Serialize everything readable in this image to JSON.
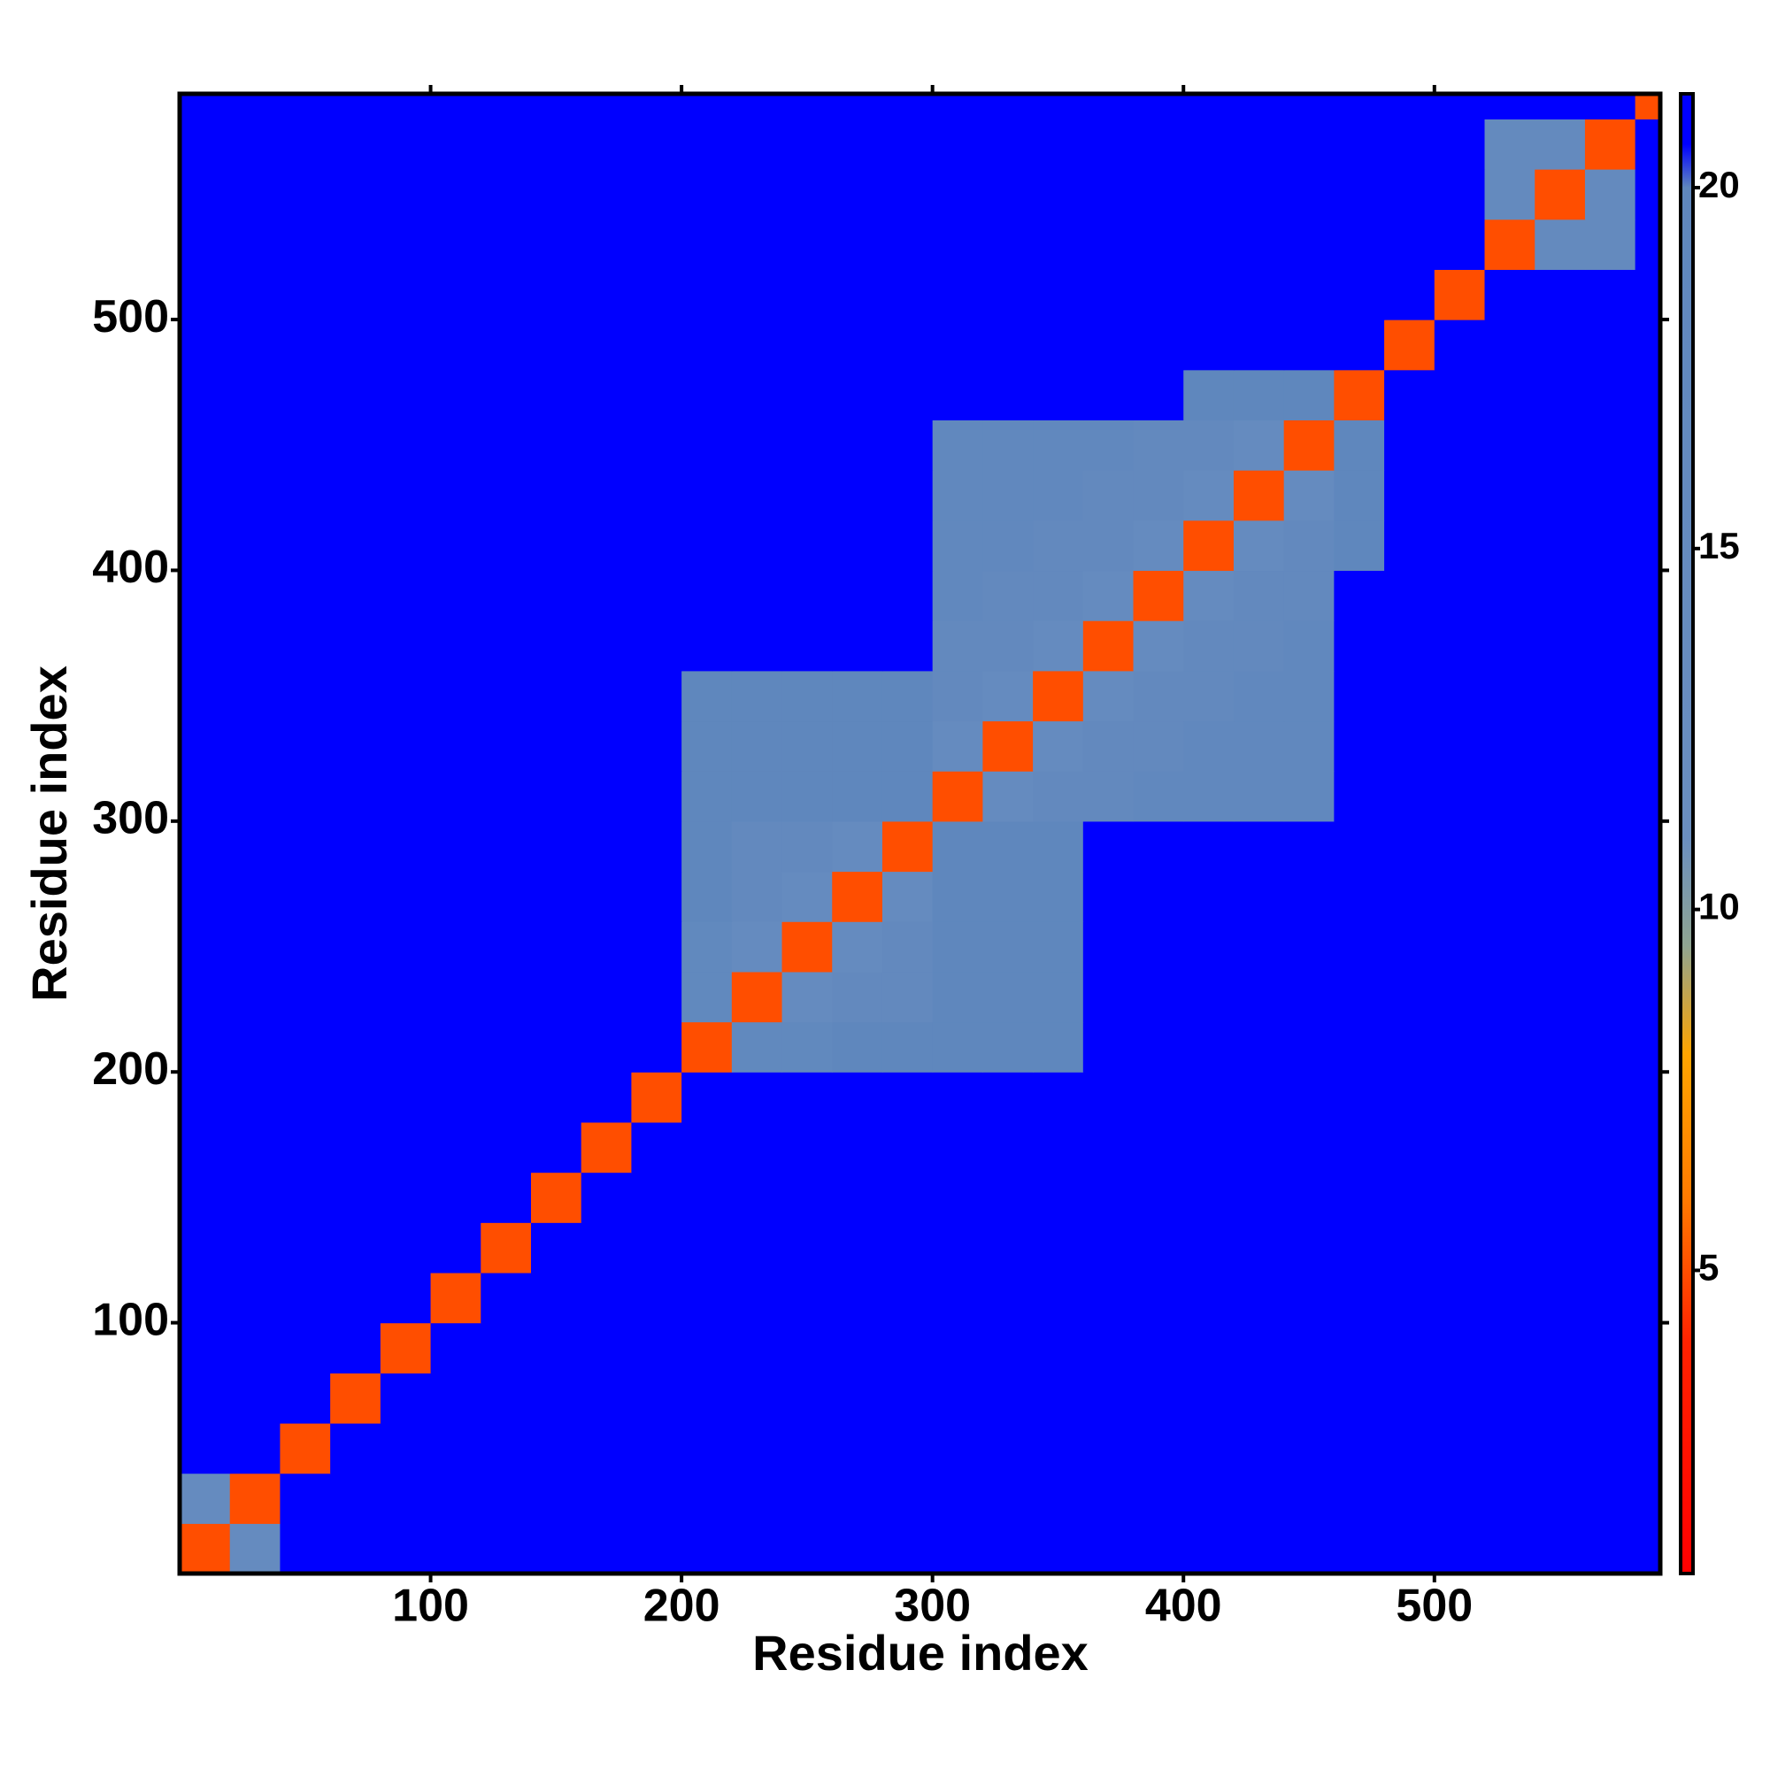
{
  "chart_data": {
    "type": "heatmap",
    "x_label": "Residue index",
    "y_label": "Residue index",
    "x": [
      0,
      20,
      40,
      60,
      80,
      100,
      120,
      140,
      160,
      180,
      200,
      220,
      240,
      260,
      280,
      300,
      320,
      340,
      360,
      380,
      400,
      420,
      440,
      460,
      480,
      500,
      520,
      540,
      560,
      580,
      590
    ],
    "y": [
      0,
      20,
      40,
      60,
      80,
      100,
      120,
      140,
      160,
      180,
      200,
      220,
      240,
      260,
      280,
      300,
      320,
      340,
      360,
      380,
      400,
      420,
      440,
      460,
      480,
      500,
      520,
      540,
      560,
      580,
      590
    ],
    "z": [
      [
        5,
        15,
        21,
        21,
        21,
        21,
        21,
        21,
        21,
        21,
        21,
        21,
        21,
        21,
        21,
        21,
        21,
        21,
        21,
        21,
        21,
        21,
        21,
        21,
        21,
        21,
        21,
        21,
        21,
        21
      ],
      [
        15,
        5,
        21,
        21,
        21,
        21,
        21,
        21,
        21,
        21,
        21,
        21,
        21,
        21,
        21,
        21,
        21,
        21,
        21,
        21,
        21,
        21,
        21,
        21,
        21,
        21,
        21,
        21,
        21,
        21
      ],
      [
        21,
        21,
        5,
        21,
        21,
        21,
        21,
        21,
        21,
        21,
        21,
        21,
        21,
        21,
        21,
        21,
        21,
        21,
        21,
        21,
        21,
        21,
        21,
        21,
        21,
        21,
        21,
        21,
        21,
        21
      ],
      [
        21,
        21,
        21,
        5,
        21,
        21,
        21,
        21,
        21,
        21,
        21,
        21,
        21,
        21,
        21,
        21,
        21,
        21,
        21,
        21,
        21,
        21,
        21,
        21,
        21,
        21,
        21,
        21,
        21,
        21
      ],
      [
        21,
        21,
        21,
        21,
        5,
        21,
        21,
        21,
        21,
        21,
        21,
        21,
        21,
        21,
        21,
        21,
        21,
        21,
        21,
        21,
        21,
        21,
        21,
        21,
        21,
        21,
        21,
        21,
        21,
        21
      ],
      [
        21,
        21,
        21,
        21,
        21,
        5,
        21,
        21,
        21,
        21,
        21,
        21,
        21,
        21,
        21,
        21,
        21,
        21,
        21,
        21,
        21,
        21,
        21,
        21,
        21,
        21,
        21,
        21,
        21,
        21
      ],
      [
        21,
        21,
        21,
        21,
        21,
        21,
        5,
        21,
        21,
        21,
        21,
        21,
        21,
        21,
        21,
        21,
        21,
        21,
        21,
        21,
        21,
        21,
        21,
        21,
        21,
        21,
        21,
        21,
        21,
        21
      ],
      [
        21,
        21,
        21,
        21,
        21,
        21,
        21,
        5,
        21,
        21,
        21,
        21,
        21,
        21,
        21,
        21,
        21,
        21,
        21,
        21,
        21,
        21,
        21,
        21,
        21,
        21,
        21,
        21,
        21,
        21
      ],
      [
        21,
        21,
        21,
        21,
        21,
        21,
        21,
        21,
        5,
        21,
        21,
        21,
        21,
        21,
        21,
        21,
        21,
        21,
        21,
        21,
        21,
        21,
        21,
        21,
        21,
        21,
        21,
        21,
        21,
        21
      ],
      [
        21,
        21,
        21,
        21,
        21,
        21,
        21,
        21,
        21,
        5,
        21,
        21,
        21,
        21,
        21,
        21,
        21,
        21,
        21,
        21,
        21,
        21,
        21,
        21,
        21,
        21,
        21,
        21,
        21,
        21
      ],
      [
        21,
        21,
        21,
        21,
        21,
        21,
        21,
        21,
        21,
        21,
        5,
        18,
        18,
        20,
        20,
        20,
        20,
        20,
        21,
        21,
        21,
        21,
        21,
        21,
        21,
        21,
        21,
        21,
        21,
        21
      ],
      [
        21,
        21,
        21,
        21,
        21,
        21,
        21,
        21,
        21,
        21,
        18,
        5,
        15,
        17,
        17,
        20,
        20,
        20,
        21,
        21,
        21,
        21,
        21,
        21,
        21,
        21,
        21,
        21,
        21,
        21
      ],
      [
        21,
        21,
        21,
        21,
        21,
        21,
        21,
        21,
        21,
        21,
        18,
        15,
        5,
        15,
        17,
        20,
        20,
        20,
        21,
        21,
        21,
        21,
        21,
        21,
        21,
        21,
        21,
        21,
        21,
        21
      ],
      [
        21,
        21,
        21,
        21,
        21,
        21,
        21,
        21,
        21,
        21,
        20,
        17,
        15,
        5,
        15,
        20,
        20,
        20,
        21,
        21,
        21,
        21,
        21,
        21,
        21,
        21,
        21,
        21,
        21,
        21
      ],
      [
        21,
        21,
        21,
        21,
        21,
        21,
        21,
        21,
        21,
        21,
        20,
        17,
        17,
        15,
        5,
        20,
        20,
        20,
        21,
        21,
        21,
        21,
        21,
        21,
        21,
        21,
        21,
        21,
        21,
        21
      ],
      [
        21,
        21,
        21,
        21,
        21,
        21,
        21,
        21,
        21,
        21,
        20,
        20,
        20,
        20,
        20,
        5,
        15,
        17,
        17,
        18.5,
        18.5,
        18.5,
        18.5,
        21,
        21,
        21,
        21,
        21,
        21,
        21
      ],
      [
        21,
        21,
        21,
        21,
        21,
        21,
        21,
        21,
        21,
        21,
        20,
        20,
        20,
        20,
        20,
        15,
        5,
        15,
        17,
        17,
        18.5,
        18.5,
        18.5,
        21,
        21,
        21,
        21,
        21,
        21,
        21
      ],
      [
        21,
        21,
        21,
        21,
        21,
        21,
        21,
        21,
        21,
        21,
        20,
        20,
        20,
        20,
        20,
        17,
        15,
        5,
        15,
        17,
        17,
        18.5,
        18.5,
        21,
        21,
        21,
        21,
        21,
        21,
        21
      ],
      [
        21,
        21,
        21,
        21,
        21,
        21,
        21,
        21,
        21,
        21,
        21,
        21,
        21,
        21,
        21,
        17,
        17,
        15,
        5,
        15,
        17,
        17,
        18.5,
        21,
        21,
        21,
        21,
        21,
        21,
        21
      ],
      [
        21,
        21,
        21,
        21,
        21,
        21,
        21,
        21,
        21,
        21,
        21,
        21,
        21,
        21,
        21,
        18.5,
        17,
        17,
        15,
        5,
        15,
        17,
        17,
        21,
        21,
        21,
        21,
        21,
        21,
        21
      ],
      [
        21,
        21,
        21,
        21,
        21,
        21,
        21,
        21,
        21,
        21,
        21,
        21,
        21,
        21,
        21,
        18.5,
        18.5,
        17,
        17,
        15,
        5,
        15,
        17,
        20,
        21,
        21,
        21,
        21,
        21,
        21
      ],
      [
        21,
        21,
        21,
        21,
        21,
        21,
        21,
        21,
        21,
        21,
        21,
        21,
        21,
        21,
        21,
        18.5,
        18.5,
        18.5,
        17,
        17,
        15,
        5,
        15,
        20,
        21,
        21,
        21,
        21,
        21,
        21
      ],
      [
        21,
        21,
        21,
        21,
        21,
        21,
        21,
        21,
        21,
        21,
        21,
        21,
        21,
        21,
        21,
        18.5,
        18.5,
        18.5,
        18.5,
        17,
        17,
        15,
        5,
        20,
        21,
        21,
        21,
        21,
        21,
        21
      ],
      [
        21,
        21,
        21,
        21,
        21,
        21,
        21,
        21,
        21,
        21,
        21,
        21,
        21,
        21,
        21,
        21,
        21,
        21,
        21,
        21,
        20,
        20,
        20,
        5,
        21,
        21,
        21,
        21,
        21,
        21
      ],
      [
        21,
        21,
        21,
        21,
        21,
        21,
        21,
        21,
        21,
        21,
        21,
        21,
        21,
        21,
        21,
        21,
        21,
        21,
        21,
        21,
        21,
        21,
        21,
        21,
        5,
        21,
        21,
        21,
        21,
        21
      ],
      [
        21,
        21,
        21,
        21,
        21,
        21,
        21,
        21,
        21,
        21,
        21,
        21,
        21,
        21,
        21,
        21,
        21,
        21,
        21,
        21,
        21,
        21,
        21,
        21,
        21,
        5,
        21,
        21,
        21,
        21
      ],
      [
        21,
        21,
        21,
        21,
        21,
        21,
        21,
        21,
        21,
        21,
        21,
        21,
        21,
        21,
        21,
        21,
        21,
        21,
        21,
        21,
        21,
        21,
        21,
        21,
        21,
        21,
        5,
        16,
        16,
        21
      ],
      [
        21,
        21,
        21,
        21,
        21,
        21,
        21,
        21,
        21,
        21,
        21,
        21,
        21,
        21,
        21,
        21,
        21,
        21,
        21,
        21,
        21,
        21,
        21,
        21,
        21,
        21,
        16,
        5,
        16,
        21
      ],
      [
        21,
        21,
        21,
        21,
        21,
        21,
        21,
        21,
        21,
        21,
        21,
        21,
        21,
        21,
        21,
        21,
        21,
        21,
        21,
        21,
        21,
        21,
        21,
        21,
        21,
        21,
        16,
        16,
        5,
        21
      ],
      [
        21,
        21,
        21,
        21,
        21,
        21,
        21,
        21,
        21,
        21,
        21,
        21,
        21,
        21,
        21,
        21,
        21,
        21,
        21,
        21,
        21,
        21,
        21,
        21,
        21,
        21,
        21,
        21,
        21,
        5
      ]
    ],
    "xlim": [
      0,
      590
    ],
    "ylim": [
      0,
      590
    ],
    "xticks": [
      100,
      200,
      300,
      400,
      500
    ],
    "yticks": [
      100,
      200,
      300,
      400,
      500
    ],
    "zlim": [
      0.8,
      21.3
    ],
    "colorbar_ticks": [
      5,
      10,
      15,
      20
    ],
    "colorscale": [
      [
        0.8,
        "#ff0000"
      ],
      [
        4,
        "#ff2200"
      ],
      [
        6,
        "#ff7a00"
      ],
      [
        8,
        "#ffa500"
      ],
      [
        9.5,
        "#8fa592"
      ],
      [
        11,
        "#6a8ec0"
      ],
      [
        20,
        "#5f87bd"
      ],
      [
        20.6,
        "#0000ff"
      ],
      [
        21.3,
        "#0000ff"
      ]
    ]
  }
}
